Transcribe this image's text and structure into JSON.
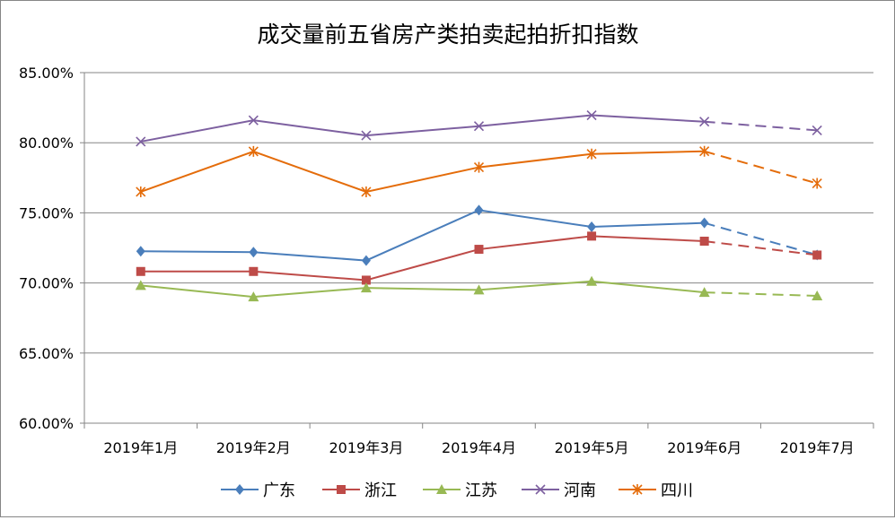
{
  "chart_data": {
    "type": "line",
    "title": "成交量前五省房产类拍卖起拍折扣指数",
    "categories": [
      "2019年1月",
      "2019年2月",
      "2019年3月",
      "2019年4月",
      "2019年5月",
      "2019年6月",
      "2019年7月"
    ],
    "ylim": [
      60,
      85
    ],
    "yticks": [
      "60.00%",
      "65.00%",
      "70.00%",
      "75.00%",
      "80.00%",
      "85.00%"
    ],
    "ytick_values": [
      60,
      65,
      70,
      75,
      80,
      85
    ],
    "grid": true,
    "legend_placement": "bottom",
    "dashed_last_segment": true,
    "series": [
      {
        "name": "广东",
        "color": "#4a7ebb",
        "marker": "diamond",
        "values": [
          72.26,
          72.2,
          71.6,
          75.19,
          74.0,
          74.28,
          72.0
        ]
      },
      {
        "name": "浙江",
        "color": "#be4b48",
        "marker": "square",
        "values": [
          70.82,
          70.82,
          70.2,
          72.4,
          73.34,
          72.98,
          71.99
        ]
      },
      {
        "name": "江苏",
        "color": "#98b954",
        "marker": "triangle",
        "values": [
          69.82,
          69.01,
          69.65,
          69.5,
          70.12,
          69.33,
          69.08
        ]
      },
      {
        "name": "河南",
        "color": "#7d60a0",
        "marker": "x",
        "values": [
          80.08,
          81.6,
          80.52,
          81.18,
          81.96,
          81.5,
          80.88
        ]
      },
      {
        "name": "四川",
        "color": "#e46c0a",
        "marker": "star",
        "values": [
          76.5,
          79.38,
          76.5,
          78.25,
          79.2,
          79.39,
          77.1
        ]
      }
    ]
  }
}
